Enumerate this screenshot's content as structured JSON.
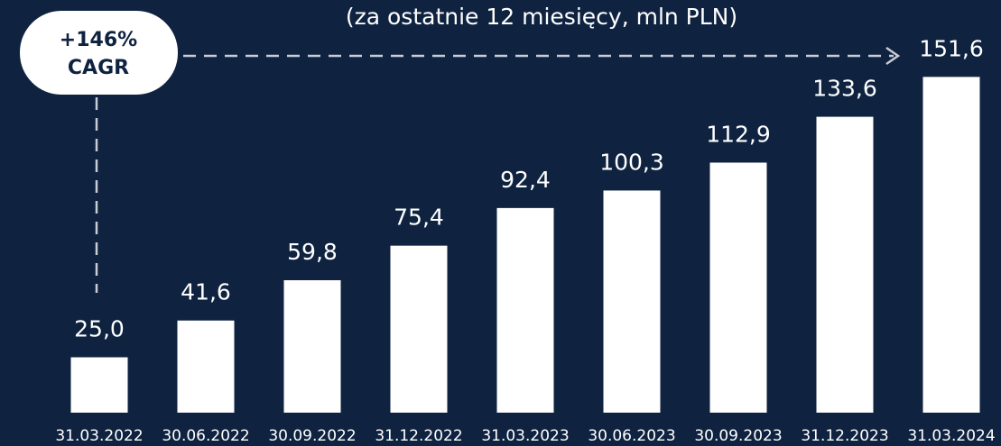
{
  "chart_data": {
    "type": "bar",
    "subtitle": "(za ostatnie 12 miesięcy, mln PLN)",
    "annotation": [
      "+146%",
      "CAGR"
    ],
    "categories": [
      "31.03.2022",
      "30.06.2022",
      "30.09.2022",
      "31.12.2022",
      "31.03.2023",
      "30.06.2023",
      "30.09.2023",
      "31.12.2023",
      "31.03.2024"
    ],
    "values": [
      25.0,
      41.6,
      59.8,
      75.4,
      92.4,
      100.3,
      112.9,
      133.6,
      151.6
    ],
    "value_labels": [
      "25,0",
      "41,6",
      "59,8",
      "75,4",
      "92,4",
      "100,3",
      "112,9",
      "133,6",
      "151,6"
    ],
    "color": "#ffffff",
    "ylim": [
      0,
      155
    ]
  }
}
